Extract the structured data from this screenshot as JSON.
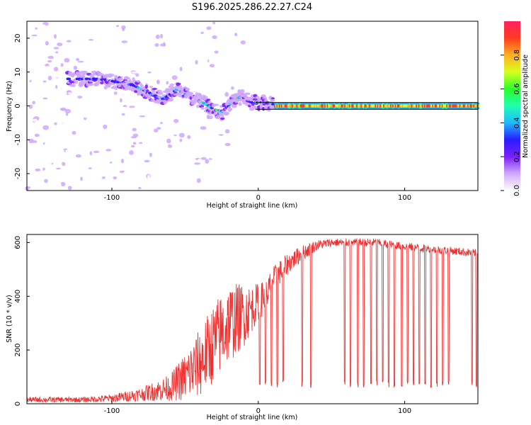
{
  "title": "S196.2025.286.22.27.C24",
  "chart_data": [
    {
      "type": "heatmap",
      "name": "spectrogram",
      "xlabel": "Height of straight line (km)",
      "ylabel": "Frequency (Hz)",
      "xlim": [
        -158,
        150
      ],
      "ylim": [
        -25,
        25
      ],
      "xticks": [
        -100,
        0,
        100
      ],
      "yticks": [
        -20,
        -10,
        0,
        10,
        20
      ],
      "colorbar": {
        "label": "Normalized spectral amplitude",
        "range": [
          0,
          1
        ],
        "ticks": [
          "0.0",
          "0.2",
          "0.4",
          "0.6",
          "0.8"
        ],
        "tick_values": [
          0,
          0.2,
          0.4,
          0.6,
          0.8
        ],
        "colors": [
          "#ffffff",
          "#cfa8ff",
          "#7a1fff",
          "#2a1cff",
          "#1fb8ff",
          "#20ffb0",
          "#29ff27",
          "#d8ff20",
          "#ffb020",
          "#ff3a20",
          "#ff2060"
        ]
      },
      "ridge": {
        "x": [
          -130,
          -110,
          -95,
          -85,
          -75,
          -65,
          -55,
          -45,
          -38,
          -30,
          -25,
          -20,
          -15,
          -10,
          -5,
          0,
          5,
          10,
          15,
          150
        ],
        "freq": [
          8,
          8,
          7,
          6,
          4,
          2,
          5,
          2,
          1,
          -1,
          -2,
          0,
          2,
          3,
          1,
          1,
          1,
          0.5,
          0,
          0
        ]
      },
      "band_outline_hz": [
        1,
        -1
      ]
    },
    {
      "type": "line",
      "name": "snr",
      "xlabel": "Height of straight line (km)",
      "ylabel": "SNR (10 * v/v)",
      "xlim": [
        -158,
        150
      ],
      "ylim": [
        0,
        630
      ],
      "xticks": [
        -100,
        0,
        100
      ],
      "yticks": [
        0,
        200,
        400,
        600
      ],
      "color": "#ee3030",
      "envelope": {
        "x": [
          -158,
          -120,
          -100,
          -80,
          -60,
          -50,
          -40,
          -30,
          -20,
          -10,
          -5,
          0,
          5,
          10,
          20,
          30,
          40,
          50,
          80,
          100,
          130,
          150
        ],
        "mean": [
          15,
          15,
          20,
          35,
          60,
          100,
          150,
          230,
          300,
          330,
          350,
          380,
          400,
          460,
          520,
          560,
          590,
          600,
          600,
          585,
          570,
          560
        ],
        "noise": [
          10,
          10,
          15,
          25,
          50,
          90,
          130,
          150,
          150,
          120,
          90,
          70,
          60,
          50,
          40,
          30,
          20,
          15,
          15,
          15,
          15,
          15
        ]
      },
      "dropout_x": [
        1,
        5,
        9,
        13,
        17,
        30,
        36,
        59,
        63,
        68,
        72,
        77,
        81,
        85,
        89,
        93,
        98,
        102,
        106,
        110,
        114,
        118,
        122,
        126,
        130,
        146,
        149
      ],
      "dropout_level": 60
    }
  ]
}
